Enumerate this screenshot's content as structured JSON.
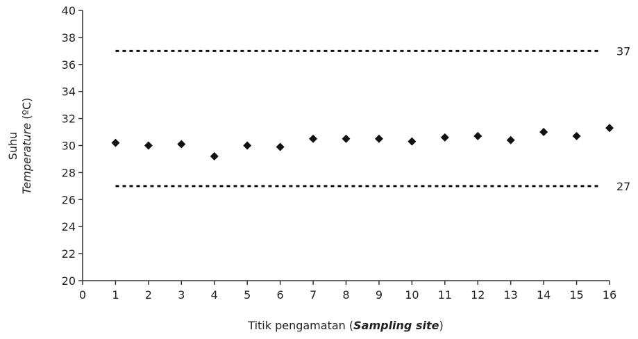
{
  "chart_data": {
    "type": "scatter",
    "xlabel_main": "Titik pengamatan (",
    "xlabel_italic": "Sampling site",
    "xlabel_close": ")",
    "ylabel_line1": "Suhu",
    "ylabel_line2_italic": "Temperature",
    "ylabel_line2_unit": " (ºC)",
    "xlim": [
      0,
      16
    ],
    "ylim": [
      20,
      40
    ],
    "x_ticks": [
      "0",
      "1",
      "2",
      "3",
      "4",
      "5",
      "6",
      "7",
      "8",
      "9",
      "10",
      "11",
      "12",
      "13",
      "14",
      "15",
      "16"
    ],
    "y_ticks": [
      "20",
      "22",
      "24",
      "26",
      "28",
      "30",
      "32",
      "34",
      "36",
      "38",
      "40"
    ],
    "grid": false,
    "marker": "diamond",
    "marker_color": "#111111",
    "x": [
      1,
      2,
      3,
      4,
      5,
      6,
      7,
      8,
      9,
      10,
      11,
      12,
      13,
      14,
      15,
      16
    ],
    "y": [
      30.2,
      30.0,
      30.1,
      29.2,
      30.0,
      29.9,
      30.5,
      30.5,
      30.5,
      30.3,
      30.6,
      30.7,
      30.4,
      31.0,
      30.7,
      31.3
    ],
    "reference_lines": [
      {
        "y": 37,
        "label": "37",
        "style": "dotted",
        "x_start": 1,
        "x_end": 16
      },
      {
        "y": 27,
        "label": "27",
        "style": "dotted",
        "x_start": 1,
        "x_end": 16
      }
    ]
  }
}
